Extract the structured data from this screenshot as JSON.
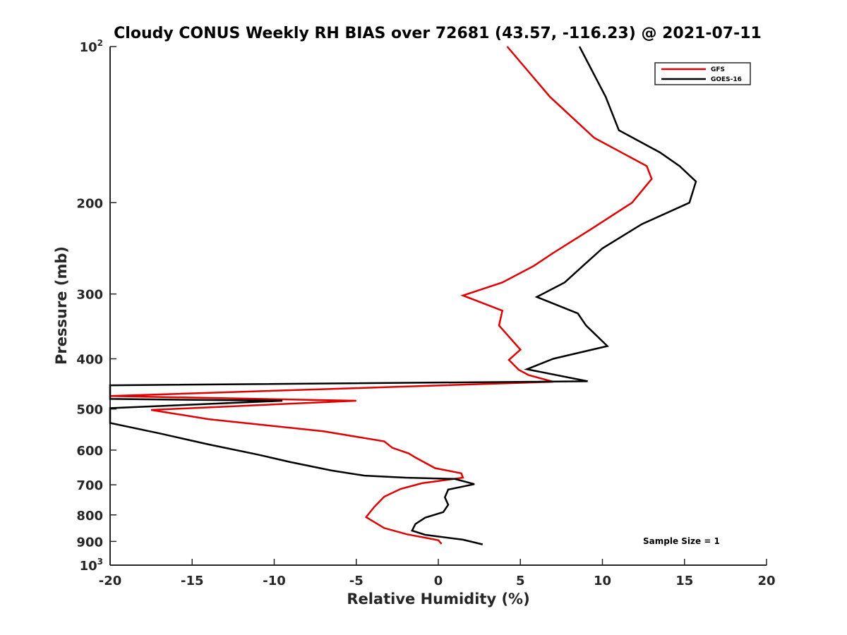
{
  "chart_data": {
    "type": "line",
    "title": "Cloudy CONUS Weekly RH BIAS over 72681 (43.57, -116.23) @ 2021-07-11",
    "xlabel": "Relative Humidity (%)",
    "ylabel": "Pressure (mb)",
    "xlim": [
      -20,
      20
    ],
    "ylim": [
      100,
      1000
    ],
    "y_scale": "log",
    "y_reversed": true,
    "x_ticks": [
      {
        "value": -20,
        "label": "-20"
      },
      {
        "value": -15,
        "label": "-15"
      },
      {
        "value": -10,
        "label": "-10"
      },
      {
        "value": -5,
        "label": "-5"
      },
      {
        "value": 0,
        "label": "0"
      },
      {
        "value": 5,
        "label": "5"
      },
      {
        "value": 10,
        "label": "10"
      },
      {
        "value": 15,
        "label": "15"
      },
      {
        "value": 20,
        "label": "20"
      }
    ],
    "y_ticks": [
      {
        "value": 100,
        "label": "10",
        "sup": "2"
      },
      {
        "value": 200,
        "label": "200",
        "sup": ""
      },
      {
        "value": 300,
        "label": "300",
        "sup": ""
      },
      {
        "value": 400,
        "label": "400",
        "sup": ""
      },
      {
        "value": 500,
        "label": "500",
        "sup": ""
      },
      {
        "value": 600,
        "label": "600",
        "sup": ""
      },
      {
        "value": 700,
        "label": "700",
        "sup": ""
      },
      {
        "value": 800,
        "label": "800",
        "sup": ""
      },
      {
        "value": 900,
        "label": "900",
        "sup": ""
      },
      {
        "value": 1000,
        "label": "10",
        "sup": "3"
      }
    ],
    "grid": false,
    "legend_position": "top-right",
    "annotation": "Sample Size = 1",
    "series": [
      {
        "name": "GFS",
        "color": "#e00000",
        "points": [
          [
            4.2,
            100
          ],
          [
            6.8,
            125
          ],
          [
            9.5,
            150
          ],
          [
            12.7,
            170
          ],
          [
            13.0,
            180
          ],
          [
            11.8,
            200
          ],
          [
            9.3,
            225
          ],
          [
            7.0,
            250
          ],
          [
            5.8,
            265
          ],
          [
            3.9,
            285
          ],
          [
            1.5,
            302
          ],
          [
            3.9,
            323
          ],
          [
            3.7,
            345
          ],
          [
            5.0,
            384
          ],
          [
            4.3,
            402
          ],
          [
            4.9,
            420
          ],
          [
            5.5,
            430
          ],
          [
            7.0,
            443
          ],
          [
            -20.0,
            472
          ],
          [
            -5.0,
            482
          ],
          [
            -17.5,
            502
          ],
          [
            -14.0,
            523
          ],
          [
            -7.0,
            552
          ],
          [
            -3.3,
            577
          ],
          [
            -2.8,
            594
          ],
          [
            -1.8,
            609
          ],
          [
            -1.4,
            620
          ],
          [
            -0.2,
            650
          ],
          [
            1.4,
            665
          ],
          [
            1.5,
            678
          ],
          [
            -1.0,
            695
          ],
          [
            -2.3,
            713
          ],
          [
            -3.3,
            738
          ],
          [
            -3.9,
            772
          ],
          [
            -4.4,
            808
          ],
          [
            -3.3,
            848
          ],
          [
            -1.9,
            872
          ],
          [
            0.0,
            895
          ],
          [
            0.2,
            910
          ]
        ]
      },
      {
        "name": "GOES-16",
        "color": "#000000",
        "points": [
          [
            8.6,
            100
          ],
          [
            10.2,
            125
          ],
          [
            11.0,
            145
          ],
          [
            13.5,
            160
          ],
          [
            14.7,
            170
          ],
          [
            15.7,
            182
          ],
          [
            15.3,
            200
          ],
          [
            12.4,
            220
          ],
          [
            10.0,
            245
          ],
          [
            8.8,
            265
          ],
          [
            7.7,
            285
          ],
          [
            6.0,
            304
          ],
          [
            8.5,
            327
          ],
          [
            9.0,
            345
          ],
          [
            10.3,
            378
          ],
          [
            7.0,
            400
          ],
          [
            5.4,
            419
          ],
          [
            9.1,
            442
          ],
          [
            -20.0,
            450
          ],
          [
            -20.0,
            478
          ],
          [
            -9.5,
            482
          ],
          [
            -20.0,
            498
          ],
          [
            -20.0,
            532
          ],
          [
            -17.0,
            557
          ],
          [
            -14.0,
            585
          ],
          [
            -11.0,
            612
          ],
          [
            -9.0,
            633
          ],
          [
            -6.5,
            657
          ],
          [
            -4.5,
            672
          ],
          [
            -2.0,
            678
          ],
          [
            1.0,
            682
          ],
          [
            2.2,
            698
          ],
          [
            0.6,
            715
          ],
          [
            0.4,
            740
          ],
          [
            0.6,
            765
          ],
          [
            0.3,
            790
          ],
          [
            -0.8,
            810
          ],
          [
            -1.4,
            833
          ],
          [
            -1.6,
            858
          ],
          [
            -0.8,
            874
          ],
          [
            1.5,
            893
          ],
          [
            2.7,
            912
          ]
        ]
      }
    ]
  }
}
